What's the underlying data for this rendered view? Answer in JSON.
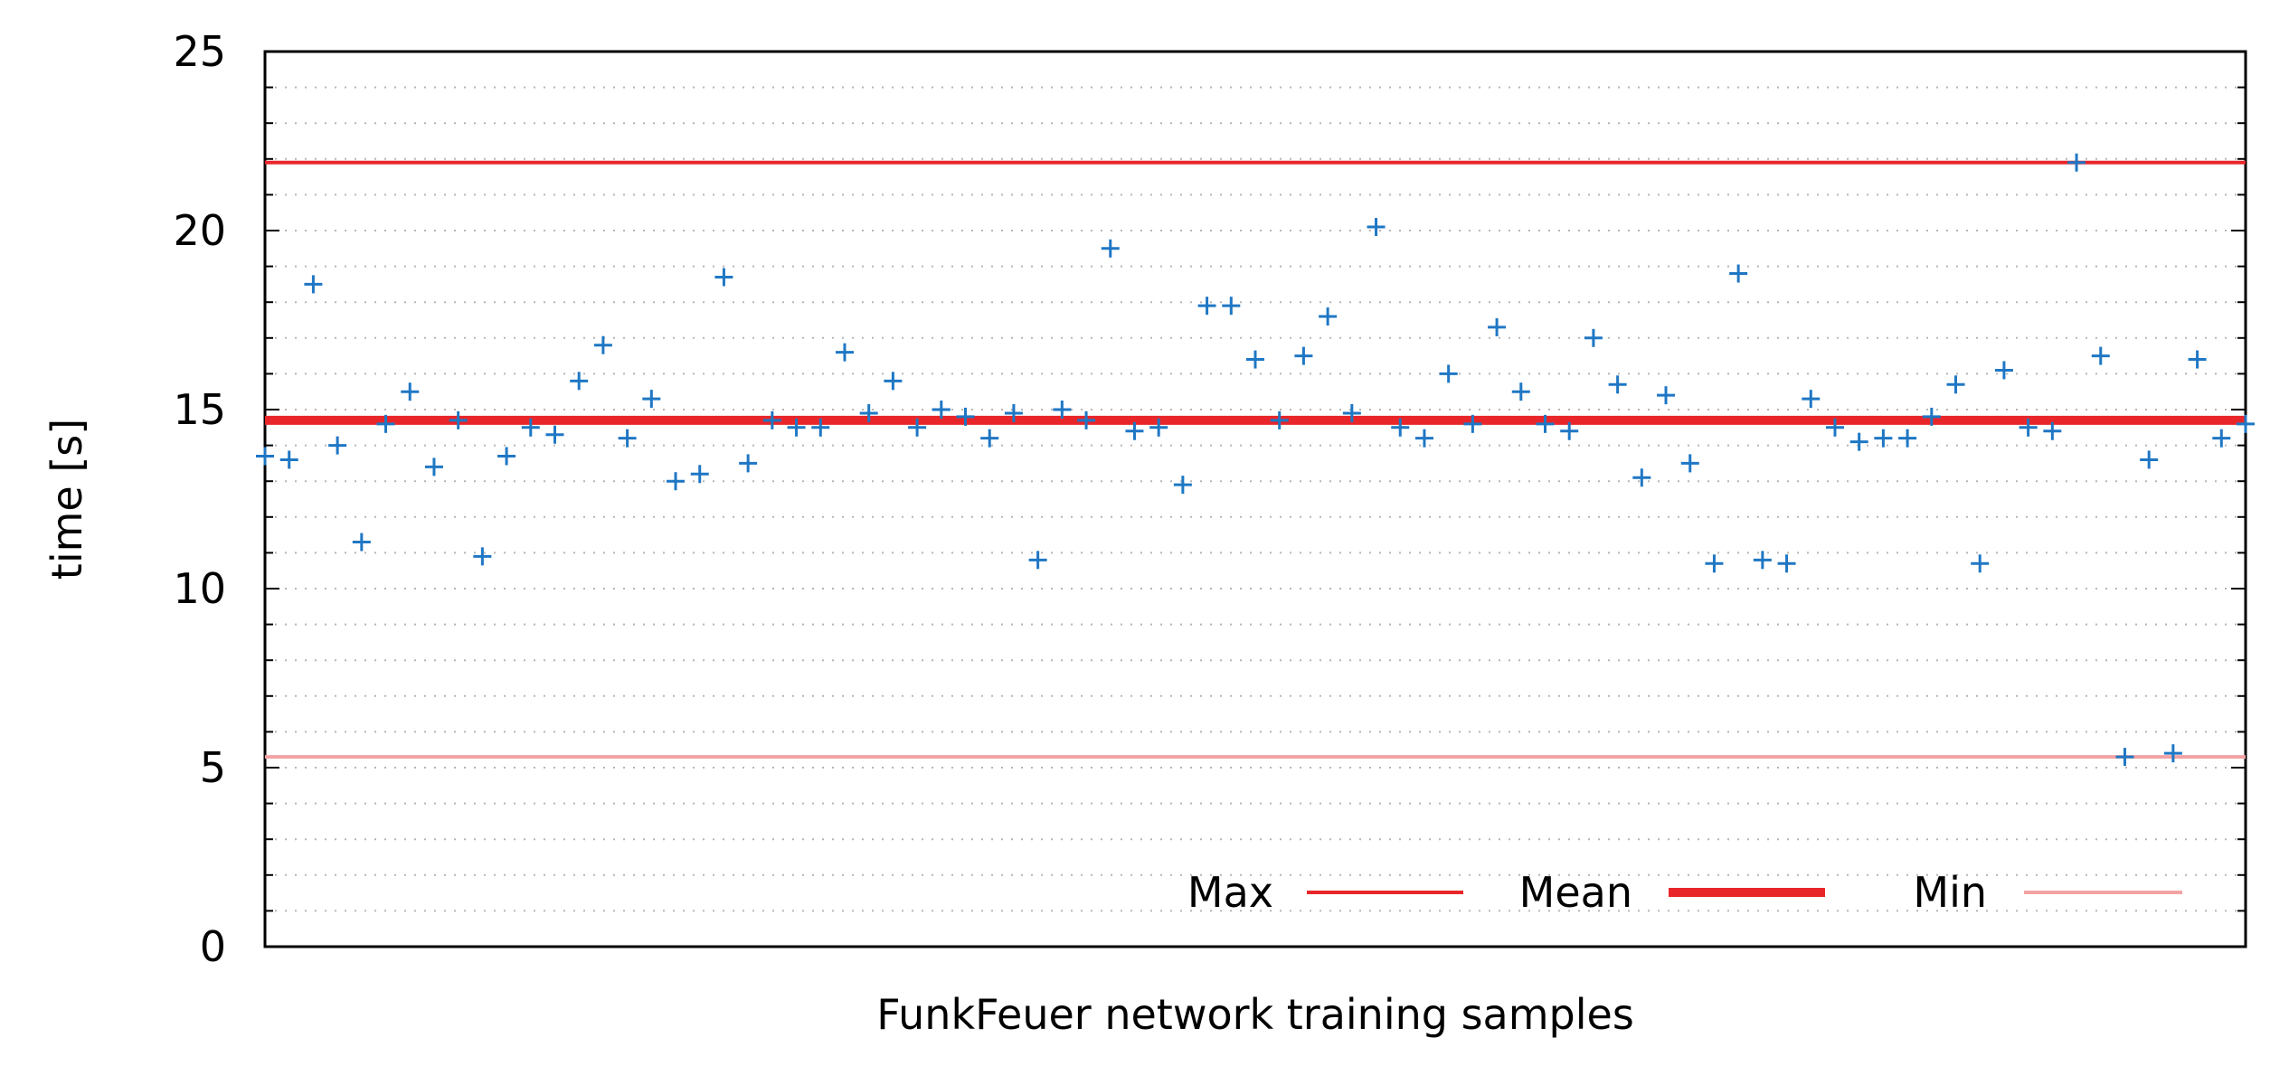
{
  "chart_data": {
    "type": "scatter",
    "xlabel": "FunkFeuer network training samples",
    "ylabel": "time [s]",
    "ylim": [
      0,
      25
    ],
    "yticks": [
      0,
      5,
      10,
      15,
      20,
      25
    ],
    "grid": true,
    "legend_position": "bottom-right",
    "marker_color": "#1f77c4",
    "series": [
      {
        "marker": "plus",
        "color": "#1f77c4",
        "x": [
          1,
          2,
          3,
          4,
          5,
          6,
          7,
          8,
          9,
          10,
          11,
          12,
          13,
          14,
          15,
          16,
          17,
          18,
          19,
          20,
          21,
          22,
          23,
          24,
          25,
          26,
          27,
          28,
          29,
          30,
          31,
          32,
          33,
          34,
          35,
          36,
          37,
          38,
          39,
          40,
          41,
          42,
          43,
          44,
          45,
          46,
          47,
          48,
          49,
          50,
          51,
          52,
          53,
          54,
          55,
          56,
          57,
          58,
          59,
          60,
          61,
          62,
          63,
          64,
          65,
          66,
          67,
          68,
          69,
          70,
          71,
          72,
          73,
          74,
          75,
          76,
          77,
          78,
          79,
          80,
          81,
          82,
          83
        ],
        "values": [
          13.7,
          13.6,
          18.5,
          14.0,
          11.3,
          14.6,
          15.5,
          13.4,
          14.7,
          10.9,
          13.7,
          14.5,
          14.3,
          15.8,
          16.8,
          14.2,
          15.3,
          13.0,
          13.2,
          18.7,
          13.5,
          14.7,
          14.5,
          14.5,
          16.6,
          14.9,
          15.8,
          14.5,
          15.0,
          14.8,
          14.2,
          14.9,
          10.8,
          15.0,
          14.7,
          19.5,
          14.4,
          14.5,
          12.9,
          17.9,
          17.9,
          16.4,
          14.7,
          16.5,
          17.6,
          14.9,
          20.1,
          14.5,
          14.2,
          16.0,
          14.6,
          17.3,
          15.5,
          14.6,
          14.4,
          17.0,
          15.7,
          13.1,
          15.4,
          13.5,
          10.7,
          18.8,
          10.8,
          10.7,
          15.3,
          14.5,
          14.1,
          14.2,
          14.2,
          14.8,
          15.7,
          10.7,
          16.1,
          14.5,
          14.4,
          21.9,
          16.5,
          5.3,
          13.6,
          5.4,
          16.4,
          14.2,
          14.6
        ]
      }
    ],
    "reference_lines": [
      {
        "name": "Max",
        "value": 21.9,
        "color": "#e8262a",
        "weight": "thin"
      },
      {
        "name": "Mean",
        "value": 14.7,
        "color": "#e8262a",
        "weight": "thick"
      },
      {
        "name": "Min",
        "value": 5.3,
        "color": "#f3a3a5",
        "weight": "thin"
      }
    ],
    "legend": [
      {
        "name": "Max",
        "color": "#e8262a",
        "weight": "thin"
      },
      {
        "name": "Mean",
        "color": "#e8262a",
        "weight": "thick"
      },
      {
        "name": "Min",
        "color": "#f3a3a5",
        "weight": "thin"
      }
    ]
  }
}
